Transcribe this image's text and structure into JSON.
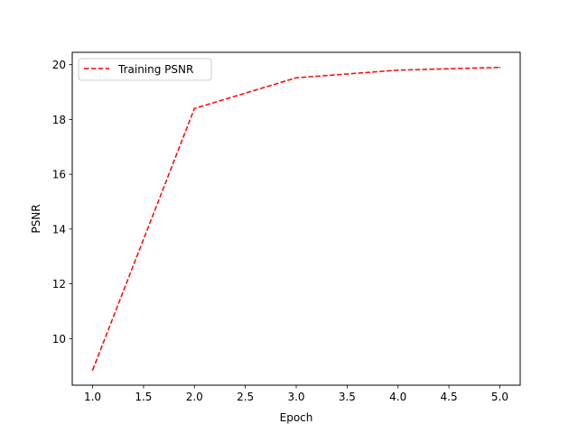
{
  "chart_data": {
    "type": "line",
    "xlabel": "Epoch",
    "ylabel": "PSNR",
    "xlim": [
      0.8,
      5.2
    ],
    "ylim": [
      8.3,
      20.45
    ],
    "x_ticks": [
      1.0,
      1.5,
      2.0,
      2.5,
      3.0,
      3.5,
      4.0,
      4.5,
      5.0
    ],
    "x_tick_labels": [
      "1.0",
      "1.5",
      "2.0",
      "2.5",
      "3.0",
      "3.5",
      "4.0",
      "4.5",
      "5.0"
    ],
    "y_ticks": [
      10,
      12,
      14,
      16,
      18,
      20
    ],
    "y_tick_labels": [
      "10",
      "12",
      "14",
      "16",
      "18",
      "20"
    ],
    "grid": false,
    "legend_position": "upper-left",
    "series": [
      {
        "name": "Training PSNR",
        "color": "#ff0000",
        "line_style": "dashed",
        "x": [
          1,
          2,
          3,
          4,
          5
        ],
        "y": [
          8.85,
          18.4,
          19.52,
          19.8,
          19.9
        ]
      }
    ]
  }
}
